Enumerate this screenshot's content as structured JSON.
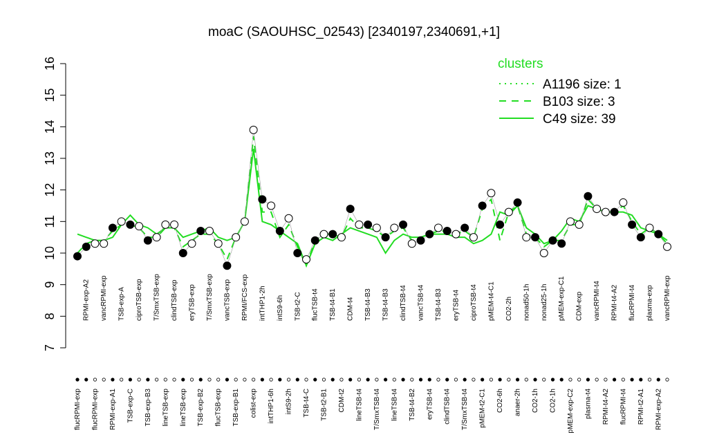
{
  "chart_data": {
    "type": "line",
    "title": "moaC (SAOUHSC_02543) [2340197,2340691,+1]",
    "ylim": [
      7,
      16
    ],
    "yticks": [
      7,
      8,
      9,
      10,
      11,
      12,
      13,
      14,
      15,
      16
    ],
    "legend_title": "clusters",
    "legend": "top-right",
    "categories": [
      "flucRPMI-exp",
      "RPMI-exp-A2",
      "flucRPMI-exp",
      "vancRPMI-exp",
      "RPMI-exp-A1",
      "TSB-exp-A",
      "TSB-exp-C",
      "ciproTSB-exp",
      "TSB-exp-B3",
      "T/SmxTSB-exp",
      "lineTSB-exp",
      "clindTSB-exp",
      "lineTSB-exp",
      "eryTSB-exp",
      "TSB-exp-B2",
      "T/SmxTSB-exp",
      "flucTSB-exp",
      "vancTSB-exp",
      "TSB-exp-B1",
      "RPMI/FCS-exp",
      "colist-exp",
      "intTHP1-2h",
      "intTHP1-6h",
      "intS9-6h",
      "intS9-2h",
      "TSB-t2-C",
      "TSB-t4-C",
      "flucTSB-t4",
      "TSB-t2-B1",
      "TSB-t4-B1",
      "CDM-t2",
      "CDM-t4",
      "lineTSB-t4",
      "TSB-t4-B3",
      "T/SmxTSB-t4",
      "TSB-t4-B3",
      "lineTSB-t4",
      "clindTSB-t4",
      "TSB-t4-B2",
      "vancTSB-t4",
      "eryTSB-t4",
      "TSB-t4-B3",
      "clindTSB-t4",
      "eryTSB-t4",
      "T/SmxTSB-t4",
      "ciproTSB-t4",
      "pMEM-t2-C1",
      "pMEM-t4-C1",
      "CO2-6h",
      "CO2-2h",
      "anaer-2h",
      "nonad50-1h",
      "CO2-1h",
      "nonad25-1h",
      "CO2-1h",
      "pMEM-exp-C1",
      "pMEM-exp-C2",
      "CDM-exp",
      "plasma-t4",
      "vancRPMI-t4",
      "RPMI-t4-A2",
      "RPMI-t4-A2",
      "flucRPMI-t4",
      "flucRPMI-t4",
      "RPMI-t2-A1",
      "plasma-exp",
      "RPMI-exp-A2",
      "vancRPMI-exp"
    ],
    "values": [
      9.9,
      10.2,
      10.3,
      10.3,
      10.8,
      11.0,
      10.9,
      10.85,
      10.4,
      10.5,
      10.9,
      10.9,
      10.0,
      10.3,
      10.7,
      10.7,
      10.3,
      9.6,
      10.5,
      11.0,
      13.9,
      11.7,
      11.5,
      10.7,
      11.1,
      10.0,
      9.8,
      10.4,
      10.6,
      10.6,
      10.5,
      11.4,
      10.9,
      10.9,
      10.8,
      10.5,
      10.8,
      10.9,
      10.3,
      10.4,
      10.6,
      10.8,
      10.7,
      10.6,
      10.8,
      10.5,
      11.5,
      11.9,
      10.9,
      11.3,
      11.6,
      10.5,
      10.5,
      10.0,
      10.4,
      10.3,
      11.0,
      10.9,
      11.8,
      11.4,
      11.3,
      11.3,
      11.6,
      10.9,
      10.5,
      10.8,
      10.6,
      10.2
    ],
    "filled": [
      true,
      true,
      false,
      false,
      true,
      false,
      true,
      false,
      true,
      false,
      false,
      false,
      true,
      false,
      true,
      false,
      false,
      true,
      false,
      false,
      false,
      true,
      false,
      true,
      false,
      true,
      false,
      true,
      false,
      true,
      false,
      true,
      false,
      true,
      false,
      true,
      false,
      true,
      false,
      true,
      true,
      false,
      true,
      false,
      true,
      false,
      true,
      false,
      true,
      false,
      true,
      false,
      true,
      false,
      true,
      true,
      false,
      false,
      true,
      false,
      false,
      true,
      false,
      true,
      true,
      false,
      true,
      false
    ],
    "series": [
      {
        "name": "A1196 size: 1",
        "color": "#22dd22",
        "dash": "dotted"
      },
      {
        "name": "B103 size: 3",
        "color": "#22dd22",
        "dash": "dashed",
        "values": [
          10.0,
          10.3,
          10.4,
          10.4,
          10.7,
          10.9,
          10.9,
          10.8,
          10.5,
          10.5,
          10.8,
          10.8,
          10.2,
          10.4,
          10.6,
          10.6,
          10.3,
          9.8,
          10.5,
          11.0,
          13.7,
          11.3,
          11.3,
          10.5,
          10.9,
          10.2,
          9.6,
          10.4,
          10.6,
          10.6,
          10.5,
          11.1,
          10.8,
          10.8,
          10.7,
          10.5,
          10.7,
          10.8,
          10.4,
          10.5,
          10.6,
          10.7,
          10.7,
          10.6,
          10.7,
          10.5,
          11.4,
          11.7,
          10.4,
          11.3,
          11.5,
          10.6,
          10.5,
          10.2,
          10.4,
          10.4,
          10.9,
          10.9,
          11.7,
          11.4,
          11.3,
          11.3,
          11.5,
          11.0,
          10.6,
          10.8,
          10.6,
          10.3
        ]
      },
      {
        "name": "C49 size: 39",
        "color": "#22dd22",
        "dash": "solid",
        "values": [
          10.6,
          10.5,
          10.4,
          10.4,
          10.5,
          10.9,
          11.2,
          10.9,
          10.8,
          10.6,
          10.8,
          10.8,
          10.5,
          10.6,
          10.7,
          10.8,
          10.5,
          10.4,
          10.5,
          11.0,
          13.3,
          11.0,
          10.9,
          10.7,
          10.5,
          10.3,
          9.6,
          10.3,
          10.5,
          10.4,
          10.6,
          10.8,
          10.7,
          10.6,
          10.5,
          10.0,
          10.4,
          10.6,
          10.5,
          10.5,
          10.6,
          10.6,
          10.6,
          10.5,
          10.5,
          10.3,
          10.4,
          10.6,
          11.3,
          11.2,
          11.5,
          10.8,
          10.6,
          10.3,
          10.4,
          10.7,
          11.1,
          11.0,
          11.5,
          11.4,
          11.3,
          11.3,
          11.3,
          11.2,
          10.8,
          10.7,
          10.6,
          10.4
        ]
      }
    ]
  }
}
